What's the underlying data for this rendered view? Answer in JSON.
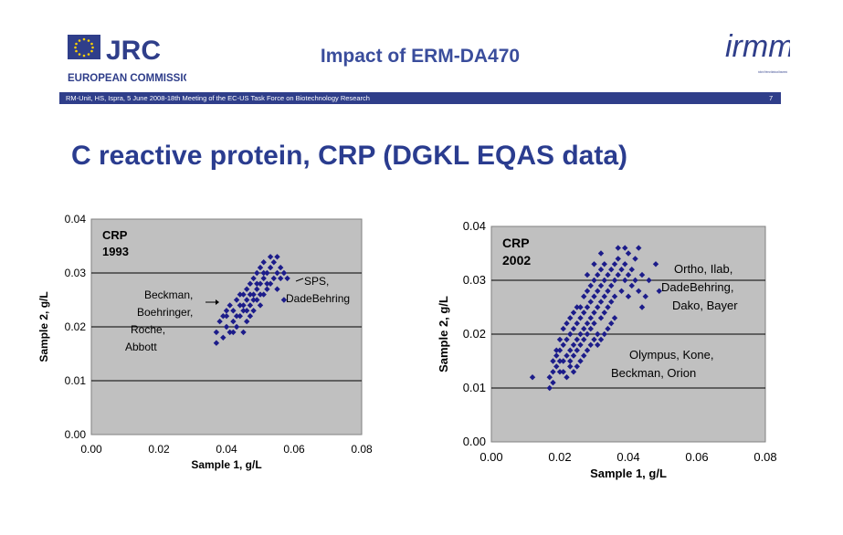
{
  "header": {
    "logo_text": "JRC",
    "logo_subtext": "EUROPEAN COMMISSION",
    "title": "Impact of ERM-DA470",
    "irmm_logo_text": "irmm",
    "irmm_subtext": "Institute for Reference Materials and Measurements",
    "bar_text": "RM-Unit, HS, Ispra, 5 June 2008-18th Meeting of the EC-US Task Force on Biotechnology Research",
    "page_number": "7"
  },
  "slide_title": "C reactive protein, CRP (DGKL EQAS data)",
  "colors": {
    "accent": "#2a3c8f",
    "bar": "#2f3e8a",
    "plot_bg": "#c0c0c0",
    "marker": "#1c1c8a"
  },
  "chart_data": [
    {
      "type": "scatter",
      "title": "CRP",
      "subtitle": "1993",
      "xlabel": "Sample 1, g/L",
      "ylabel": "Sample 2, g/L",
      "xlim": [
        0,
        0.08
      ],
      "ylim": [
        0,
        0.04
      ],
      "xticks": [
        "0.00",
        "0.02",
        "0.04",
        "0.06",
        "0.08"
      ],
      "yticks": [
        "0.00",
        "0.01",
        "0.02",
        "0.03",
        "0.04"
      ],
      "annotations": [
        {
          "lines": [
            "Beckman,",
            "Boehringer,",
            "Roche,",
            "Abbott"
          ],
          "x": 0.036,
          "y": 0.024
        },
        {
          "lines": [
            "SPS,",
            "DadeBehring"
          ],
          "x": 0.061,
          "y": 0.029
        }
      ],
      "points": [
        [
          0.037,
          0.017
        ],
        [
          0.037,
          0.019
        ],
        [
          0.038,
          0.021
        ],
        [
          0.039,
          0.018
        ],
        [
          0.04,
          0.02
        ],
        [
          0.04,
          0.022
        ],
        [
          0.041,
          0.019
        ],
        [
          0.041,
          0.024
        ],
        [
          0.042,
          0.021
        ],
        [
          0.042,
          0.023
        ],
        [
          0.043,
          0.02
        ],
        [
          0.043,
          0.025
        ],
        [
          0.044,
          0.022
        ],
        [
          0.044,
          0.024
        ],
        [
          0.045,
          0.019
        ],
        [
          0.045,
          0.026
        ],
        [
          0.045,
          0.023
        ],
        [
          0.046,
          0.021
        ],
        [
          0.046,
          0.025
        ],
        [
          0.046,
          0.027
        ],
        [
          0.047,
          0.022
        ],
        [
          0.047,
          0.024
        ],
        [
          0.047,
          0.028
        ],
        [
          0.048,
          0.023
        ],
        [
          0.048,
          0.026
        ],
        [
          0.048,
          0.029
        ],
        [
          0.049,
          0.025
        ],
        [
          0.049,
          0.027
        ],
        [
          0.049,
          0.03
        ],
        [
          0.05,
          0.024
        ],
        [
          0.05,
          0.028
        ],
        [
          0.05,
          0.031
        ],
        [
          0.051,
          0.026
        ],
        [
          0.051,
          0.029
        ],
        [
          0.051,
          0.032
        ],
        [
          0.052,
          0.027
        ],
        [
          0.052,
          0.03
        ],
        [
          0.053,
          0.028
        ],
        [
          0.053,
          0.031
        ],
        [
          0.054,
          0.029
        ],
        [
          0.054,
          0.032
        ],
        [
          0.055,
          0.03
        ],
        [
          0.055,
          0.027
        ],
        [
          0.056,
          0.031
        ],
        [
          0.056,
          0.029
        ],
        [
          0.057,
          0.03
        ],
        [
          0.043,
          0.022
        ],
        [
          0.044,
          0.026
        ],
        [
          0.046,
          0.023
        ],
        [
          0.048,
          0.025
        ],
        [
          0.05,
          0.026
        ],
        [
          0.052,
          0.028
        ],
        [
          0.045,
          0.024
        ],
        [
          0.047,
          0.026
        ],
        [
          0.049,
          0.028
        ],
        [
          0.051,
          0.03
        ],
        [
          0.042,
          0.019
        ],
        [
          0.04,
          0.023
        ],
        [
          0.039,
          0.022
        ],
        [
          0.053,
          0.033
        ],
        [
          0.055,
          0.033
        ],
        [
          0.058,
          0.029
        ],
        [
          0.057,
          0.025
        ]
      ]
    },
    {
      "type": "scatter",
      "title": "CRP",
      "subtitle": "2002",
      "xlabel": "Sample 1, g/L",
      "ylabel": "Sample 2, g/L",
      "xlim": [
        0,
        0.08
      ],
      "ylim": [
        0,
        0.04
      ],
      "xticks": [
        "0.00",
        "0.02",
        "0.04",
        "0.06",
        "0.08"
      ],
      "yticks": [
        "0.00",
        "0.01",
        "0.02",
        "0.03",
        "0.04"
      ],
      "annotations": [
        {
          "lines": [
            "Ortho, Ilab,",
            "DadeBehring,",
            "Dako, Bayer"
          ],
          "x": 0.05,
          "y": 0.031
        },
        {
          "lines": [
            "Olympus, Kone,",
            "Beckman, Orion"
          ],
          "x": 0.034,
          "y": 0.016
        }
      ],
      "points": [
        [
          0.012,
          0.012
        ],
        [
          0.017,
          0.01
        ],
        [
          0.017,
          0.012
        ],
        [
          0.018,
          0.013
        ],
        [
          0.018,
          0.015
        ],
        [
          0.019,
          0.014
        ],
        [
          0.019,
          0.016
        ],
        [
          0.02,
          0.013
        ],
        [
          0.02,
          0.017
        ],
        [
          0.021,
          0.015
        ],
        [
          0.021,
          0.018
        ],
        [
          0.022,
          0.016
        ],
        [
          0.022,
          0.019
        ],
        [
          0.023,
          0.017
        ],
        [
          0.023,
          0.02
        ],
        [
          0.023,
          0.014
        ],
        [
          0.024,
          0.018
        ],
        [
          0.024,
          0.021
        ],
        [
          0.024,
          0.016
        ],
        [
          0.025,
          0.019
        ],
        [
          0.025,
          0.022
        ],
        [
          0.025,
          0.017
        ],
        [
          0.026,
          0.02
        ],
        [
          0.026,
          0.023
        ],
        [
          0.026,
          0.018
        ],
        [
          0.027,
          0.021
        ],
        [
          0.027,
          0.024
        ],
        [
          0.027,
          0.019
        ],
        [
          0.028,
          0.022
        ],
        [
          0.028,
          0.025
        ],
        [
          0.028,
          0.02
        ],
        [
          0.029,
          0.023
        ],
        [
          0.029,
          0.026
        ],
        [
          0.029,
          0.021
        ],
        [
          0.03,
          0.024
        ],
        [
          0.03,
          0.027
        ],
        [
          0.03,
          0.022
        ],
        [
          0.031,
          0.025
        ],
        [
          0.031,
          0.028
        ],
        [
          0.031,
          0.02
        ],
        [
          0.032,
          0.026
        ],
        [
          0.032,
          0.029
        ],
        [
          0.032,
          0.023
        ],
        [
          0.033,
          0.027
        ],
        [
          0.033,
          0.03
        ],
        [
          0.033,
          0.024
        ],
        [
          0.034,
          0.028
        ],
        [
          0.034,
          0.031
        ],
        [
          0.034,
          0.025
        ],
        [
          0.035,
          0.029
        ],
        [
          0.035,
          0.032
        ],
        [
          0.035,
          0.026
        ],
        [
          0.036,
          0.03
        ],
        [
          0.036,
          0.033
        ],
        [
          0.036,
          0.027
        ],
        [
          0.037,
          0.031
        ],
        [
          0.037,
          0.034
        ],
        [
          0.038,
          0.032
        ],
        [
          0.038,
          0.028
        ],
        [
          0.039,
          0.033
        ],
        [
          0.039,
          0.03
        ],
        [
          0.04,
          0.031
        ],
        [
          0.04,
          0.027
        ],
        [
          0.041,
          0.032
        ],
        [
          0.041,
          0.029
        ],
        [
          0.042,
          0.03
        ],
        [
          0.043,
          0.028
        ],
        [
          0.044,
          0.025
        ],
        [
          0.037,
          0.036
        ],
        [
          0.04,
          0.035
        ],
        [
          0.043,
          0.036
        ],
        [
          0.046,
          0.03
        ],
        [
          0.048,
          0.033
        ],
        [
          0.049,
          0.028
        ],
        [
          0.044,
          0.031
        ],
        [
          0.045,
          0.027
        ],
        [
          0.042,
          0.034
        ],
        [
          0.039,
          0.036
        ],
        [
          0.021,
          0.013
        ],
        [
          0.022,
          0.012
        ],
        [
          0.023,
          0.015
        ],
        [
          0.024,
          0.013
        ],
        [
          0.025,
          0.014
        ],
        [
          0.026,
          0.015
        ],
        [
          0.027,
          0.016
        ],
        [
          0.028,
          0.017
        ],
        [
          0.029,
          0.018
        ],
        [
          0.03,
          0.019
        ],
        [
          0.031,
          0.018
        ],
        [
          0.032,
          0.019
        ],
        [
          0.033,
          0.02
        ],
        [
          0.034,
          0.021
        ],
        [
          0.035,
          0.022
        ],
        [
          0.036,
          0.023
        ],
        [
          0.026,
          0.025
        ],
        [
          0.027,
          0.027
        ],
        [
          0.028,
          0.028
        ],
        [
          0.029,
          0.029
        ],
        [
          0.03,
          0.03
        ],
        [
          0.031,
          0.031
        ],
        [
          0.032,
          0.032
        ],
        [
          0.033,
          0.033
        ],
        [
          0.02,
          0.019
        ],
        [
          0.021,
          0.021
        ],
        [
          0.022,
          0.022
        ],
        [
          0.023,
          0.023
        ],
        [
          0.024,
          0.024
        ],
        [
          0.025,
          0.025
        ],
        [
          0.028,
          0.031
        ],
        [
          0.03,
          0.033
        ],
        [
          0.032,
          0.035
        ],
        [
          0.019,
          0.017
        ],
        [
          0.02,
          0.015
        ],
        [
          0.018,
          0.011
        ]
      ]
    }
  ]
}
